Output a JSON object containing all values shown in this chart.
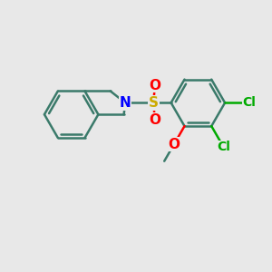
{
  "background_color": "#e8e8e8",
  "bond_color": "#3a7a6a",
  "bond_width": 1.8,
  "N_color": "#0000ff",
  "S_color": "#ccaa00",
  "O_color": "#ff0000",
  "Cl_color": "#00aa00",
  "label_fontsize": 11,
  "figsize": [
    3.0,
    3.0
  ],
  "dpi": 100,
  "xlim": [
    0,
    10
  ],
  "ylim": [
    0,
    10
  ]
}
